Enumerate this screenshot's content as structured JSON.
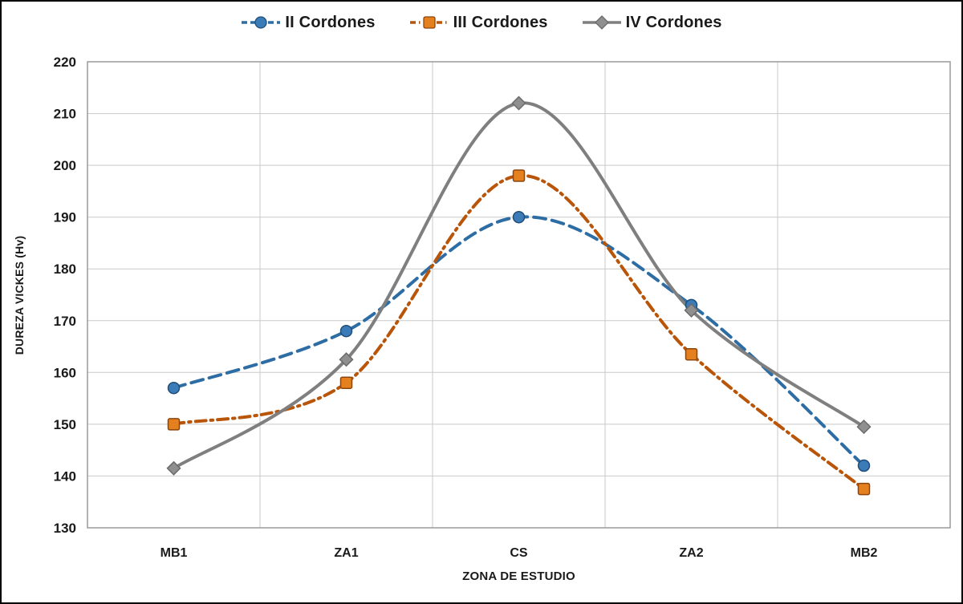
{
  "figure": {
    "background": "#ffffff",
    "border_color": "#000000",
    "text_color": "#1a1a1a",
    "gridline_color": "#c9c9c9",
    "plot_border_color": "#9a9a9a"
  },
  "chart_data": {
    "type": "line",
    "title": "",
    "xlabel": "ZONA DE ESTUDIO",
    "ylabel": "DUREZA VICKES (Hv)",
    "categories": [
      "MB1",
      "ZA1",
      "CS",
      "ZA2",
      "MB2"
    ],
    "yticks": [
      130,
      140,
      150,
      160,
      170,
      180,
      190,
      200,
      210,
      220
    ],
    "ylim": [
      130,
      220
    ],
    "grid": "both",
    "legend_position": "top-center",
    "smooth_lines": true,
    "series": [
      {
        "name": "II Cordones",
        "values": [
          157,
          168,
          190,
          173,
          142
        ],
        "line_style": "dashed",
        "dash": "15 8",
        "marker": "circle",
        "line_color": "#2e6da4",
        "marker_fill": "#3b7cb8",
        "marker_stroke": "#1f4e79"
      },
      {
        "name": "III Cordones",
        "values": [
          150,
          158,
          198,
          163.5,
          137.5
        ],
        "line_style": "dash-dot",
        "dash": "13 6 2.5 6",
        "marker": "square",
        "line_color": "#b85509",
        "marker_fill": "#e5801f",
        "marker_stroke": "#8c450c"
      },
      {
        "name": "IV Cordones",
        "values": [
          141.5,
          162.5,
          212,
          172,
          149.5
        ],
        "line_style": "solid",
        "dash": "",
        "marker": "diamond",
        "line_color": "#7f7f7f",
        "marker_fill": "#8f8f8f",
        "marker_stroke": "#6b6b6b"
      }
    ]
  }
}
